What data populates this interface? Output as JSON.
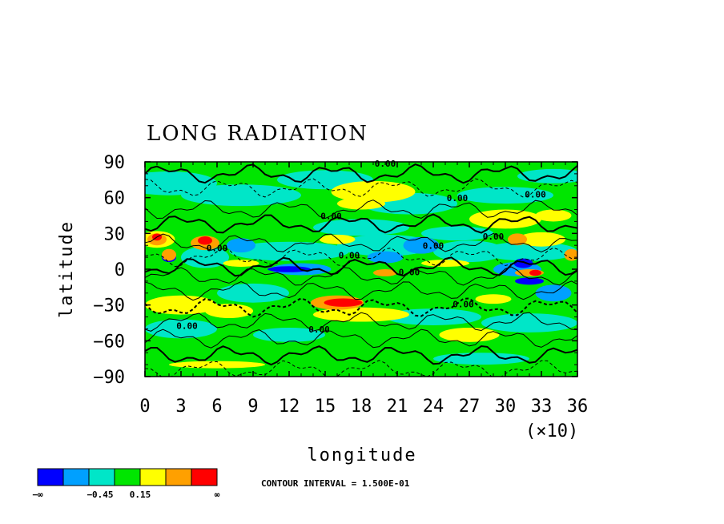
{
  "chart_data": {
    "type": "heatmap",
    "title": "LONG RADIATION",
    "xlabel": "longitude",
    "ylabel": "latitude",
    "x_multiplier_label": "(×10)",
    "xlim": [
      0,
      36
    ],
    "ylim": [
      -90,
      90
    ],
    "x_ticks": [
      "0",
      "3",
      "6",
      "9",
      "12",
      "15",
      "18",
      "21",
      "24",
      "27",
      "30",
      "33",
      "36"
    ],
    "y_ticks": [
      "90",
      "60",
      "30",
      "0",
      "−30",
      "−60",
      "−90"
    ],
    "colorbar": {
      "colors": [
        "#0000ff",
        "#00a0ff",
        "#00e6c8",
        "#00e600",
        "#ffff00",
        "#ffa000",
        "#ff0000"
      ],
      "labels": [
        "−∞",
        "−0.45",
        "0.15",
        "∞"
      ]
    },
    "contour_interval_text": "CONTOUR INTERVAL = 1.500E-01",
    "contour_labels": [
      "0.00",
      "0.00",
      "0.00",
      "0.00",
      "0.00",
      "0.00",
      "0.00",
      "0.00",
      "0.00",
      "0.00",
      "0.00",
      "0.00"
    ]
  }
}
